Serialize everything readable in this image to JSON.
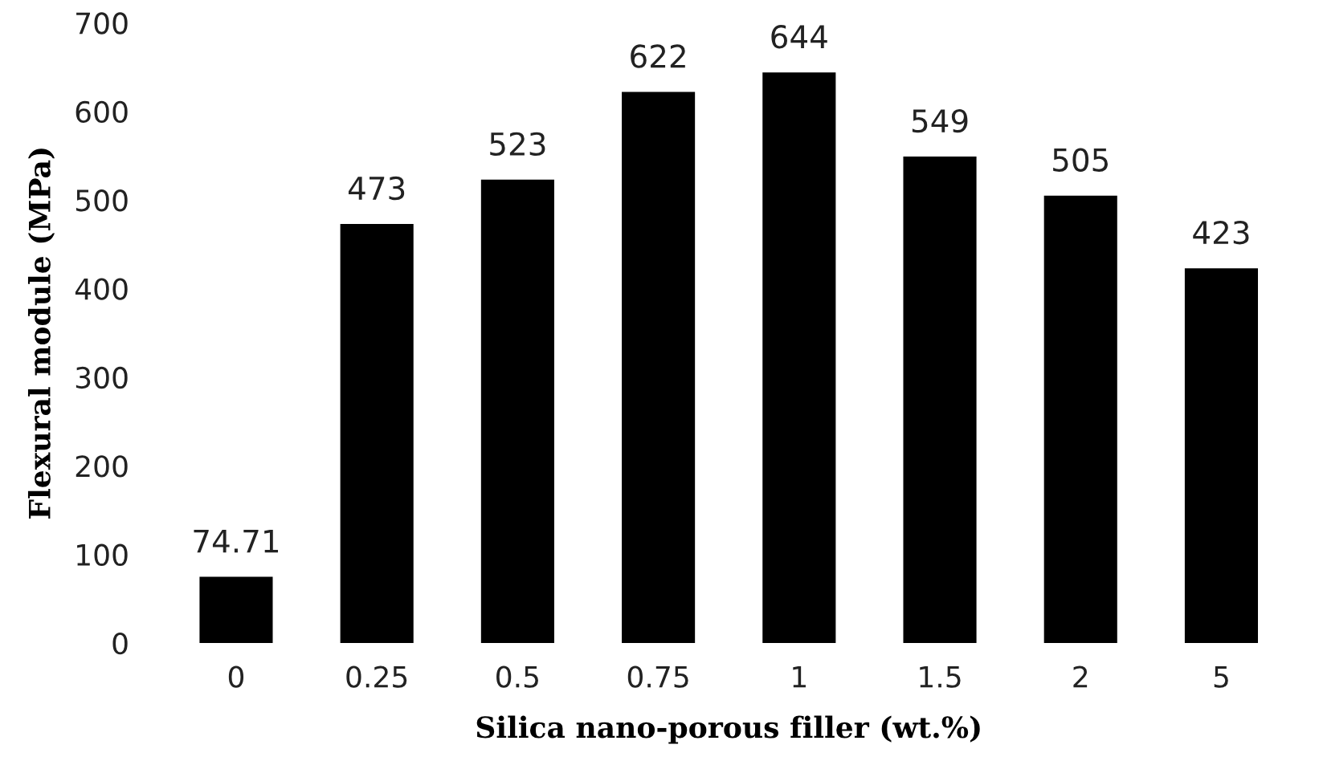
{
  "chart_data": {
    "type": "bar",
    "xlabel": "Silica nano-porous filler (wt.%)",
    "ylabel": "Flexural module (MPa)",
    "categories": [
      "0",
      "0.25",
      "0.5",
      "0.75",
      "1",
      "1.5",
      "2",
      "5"
    ],
    "values": [
      74.71,
      473,
      523,
      622,
      644,
      549,
      505,
      423
    ],
    "color": "#000000",
    "ylim": [
      0,
      700
    ],
    "yticks": [
      0,
      100,
      200,
      300,
      400,
      500,
      600,
      700
    ],
    "data_labels": true,
    "grid": false,
    "legend": false
  }
}
